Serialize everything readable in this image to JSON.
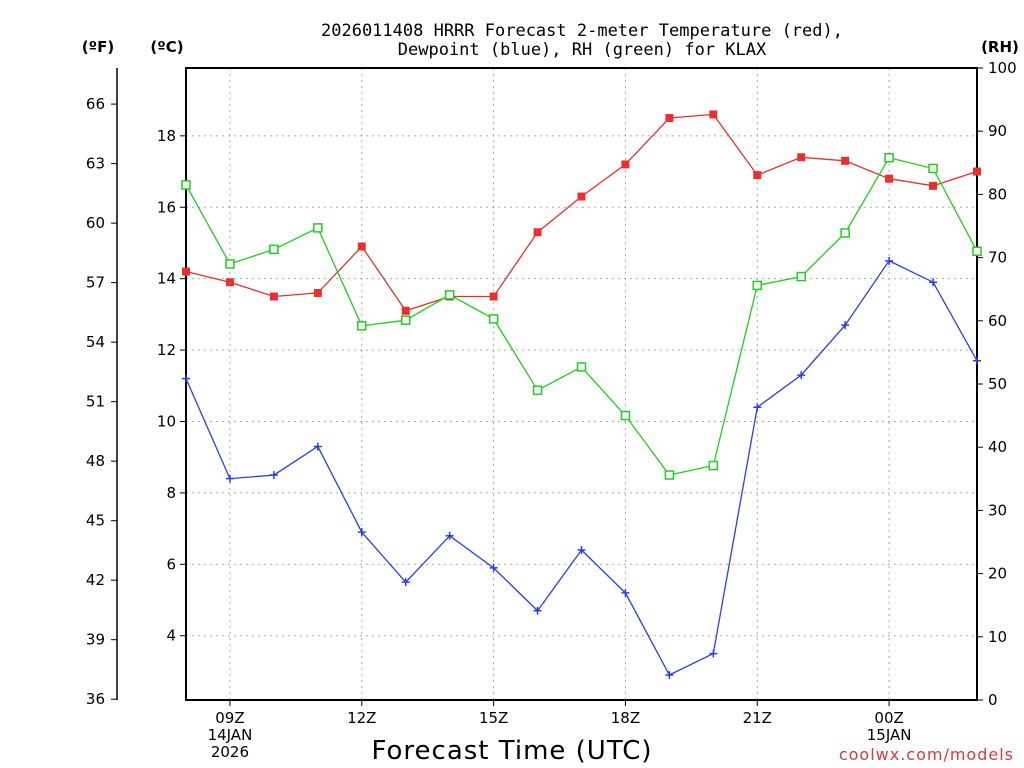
{
  "chart_data": {
    "type": "line",
    "title_lines": [
      "2026011408 HRRR Forecast 2-meter Temperature (red),",
      "Dewpoint (blue), RH (green) for KLAX"
    ],
    "xlabel": "Forecast Time (UTC)",
    "credit": "coolwx.com/models",
    "credit_color": "#d83a3a",
    "axes": {
      "left_f_label": "(ºF)",
      "left_c_label": "(ºC)",
      "right_label": "(RH)",
      "celsius": {
        "range": [
          2.2,
          19.9
        ],
        "ticks": [
          4,
          6,
          8,
          10,
          12,
          14,
          16,
          18
        ]
      },
      "fahrenheit": {
        "ticks": [
          36,
          39,
          42,
          45,
          48,
          51,
          54,
          57,
          60,
          63,
          66
        ]
      },
      "rh": {
        "range": [
          0,
          100
        ],
        "ticks": [
          0,
          10,
          20,
          30,
          40,
          50,
          60,
          70,
          80,
          90,
          100
        ]
      },
      "grid": true
    },
    "x_hours": [
      8,
      9,
      10,
      11,
      12,
      13,
      14,
      15,
      16,
      17,
      18,
      19,
      20,
      21,
      22,
      23,
      24,
      25,
      26
    ],
    "x_range": [
      8,
      26
    ],
    "x_ticks": [
      {
        "hour": 9,
        "lines": [
          "09Z",
          "14JAN",
          "2026"
        ]
      },
      {
        "hour": 12,
        "lines": [
          "12Z"
        ]
      },
      {
        "hour": 15,
        "lines": [
          "15Z"
        ]
      },
      {
        "hour": 18,
        "lines": [
          "18Z"
        ]
      },
      {
        "hour": 21,
        "lines": [
          "21Z"
        ]
      },
      {
        "hour": 24,
        "lines": [
          "00Z",
          "15JAN"
        ]
      }
    ],
    "series": [
      {
        "name": "Temperature",
        "axis": "celsius",
        "color": "#e83030",
        "marker": "filled-square",
        "values": [
          14.2,
          13.9,
          13.5,
          13.6,
          14.9,
          13.1,
          13.5,
          13.5,
          15.3,
          16.3,
          17.2,
          18.5,
          18.6,
          16.9,
          17.4,
          17.3,
          16.8,
          16.6,
          17.0
        ]
      },
      {
        "name": "Dewpoint",
        "axis": "celsius",
        "color": "#2a3fe0",
        "marker": "plus",
        "values": [
          11.2,
          8.4,
          8.5,
          9.3,
          6.9,
          5.5,
          6.8,
          5.9,
          4.7,
          6.4,
          5.2,
          2.9,
          3.5,
          10.4,
          11.3,
          12.7,
          14.5,
          13.9,
          11.7
        ]
      },
      {
        "name": "RH",
        "axis": "rh",
        "color": "#22cc22",
        "marker": "open-square",
        "values": [
          81.5,
          69,
          71.3,
          74.7,
          59.2,
          60.1,
          64.1,
          60.3,
          49,
          52.7,
          45,
          35.6,
          37.1,
          65.6,
          67,
          73.9,
          85.8,
          84.1,
          71
        ]
      }
    ]
  }
}
